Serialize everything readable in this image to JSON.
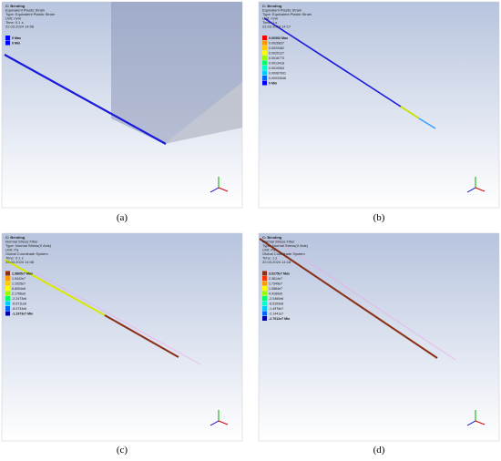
{
  "panels": [
    {
      "label": "(a)",
      "header": [
        "C: Bending",
        "Equivalent Plastic Strain",
        "Type: Equivalent Plastic Strain",
        "Unit: m/m",
        "Time: 0.1 s",
        "22.03.2024 14:06"
      ],
      "legend": {
        "labels": [
          "0 Max",
          "0 Min"
        ],
        "colors": [
          "#0000ff",
          "#0000ff"
        ]
      }
    },
    {
      "label": "(b)",
      "header": [
        "C: Bending",
        "Equivalent Plastic Strain",
        "Type: Equivalent Plastic Strain",
        "Unit: m/m",
        "Time: 1 s",
        "22.03.2024 14:17"
      ],
      "legend": {
        "labels": [
          "0.00302 Max",
          "0.0026837",
          "0.0023482",
          "0.0020127",
          "0.0016773",
          "0.0013418",
          "0.0010064",
          "0.00067091",
          "0.00033546",
          "0 Min"
        ],
        "colors": [
          "#ff0000",
          "#ff9900",
          "#ffcc00",
          "#ffff00",
          "#99ff00",
          "#00ff66",
          "#00ffcc",
          "#00ccff",
          "#0066ff",
          "#0000ff"
        ]
      }
    },
    {
      "label": "(c)",
      "header": [
        "C: Bending",
        "Normal Stress Fiber",
        "Type: Normal Stress(X Axis)",
        "Unit: Pa",
        "Global Coordinate System",
        "Time: 0.1 s",
        "22.03.2024 14:08"
      ],
      "legend": {
        "labels": [
          "1.9865e7 Max",
          "1.5442e7",
          "1.1025e7",
          "6.6004e6",
          "2.1766e6",
          "-2.2473e6",
          "-6.6711e6",
          "-8.0734e6",
          "-1.2373e7 Min"
        ],
        "colors": [
          "#8b2e16",
          "#ff9900",
          "#ffcc00",
          "#ffff00",
          "#99ff00",
          "#00ff66",
          "#00ccff",
          "#0066ff",
          "#0000aa"
        ]
      }
    },
    {
      "label": "(d)",
      "header": [
        "C: Bending",
        "Normal Stress Fiber",
        "Type: Normal Stress(X Axis)",
        "Unit: Pa",
        "Global Coordinate System",
        "Time: 1 s",
        "22.03.2024 14:18"
      ],
      "legend": {
        "labels": [
          "3.0275e7 Max",
          "2.3814e7",
          "1.7349e7",
          "1.0884e7",
          "4.4189e6",
          "-2.0460e6",
          "-8.5109e6",
          "-1.4976e7",
          "-2.1441e7",
          "-2.7912e7 Min"
        ],
        "colors": [
          "#8b2e16",
          "#ff3300",
          "#ff9900",
          "#ffff00",
          "#99ff00",
          "#00ff66",
          "#00ffcc",
          "#00ccff",
          "#0066ff",
          "#0000aa"
        ]
      }
    }
  ]
}
